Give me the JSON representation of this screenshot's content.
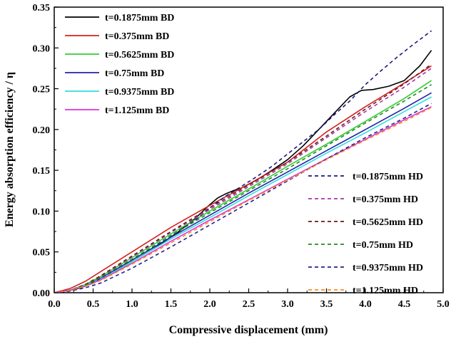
{
  "chart_data": {
    "type": "line",
    "title": "",
    "xlabel": "Compressive displacement (mm)",
    "ylabel": "Energy absorption efficiency / η",
    "xlim": [
      0,
      5
    ],
    "ylim": [
      0,
      0.35
    ],
    "xticks": [
      "0.0",
      "0.5",
      "1.0",
      "1.5",
      "2.0",
      "2.5",
      "3.0",
      "3.5",
      "4.0",
      "4.5",
      "5.0"
    ],
    "yticks": [
      "0.00",
      "0.05",
      "0.10",
      "0.15",
      "0.20",
      "0.25",
      "0.30",
      "0.35"
    ],
    "xtick_values": [
      0,
      0.5,
      1.0,
      1.5,
      2.0,
      2.5,
      3.0,
      3.5,
      4.0,
      4.5,
      5.0
    ],
    "ytick_values": [
      0,
      0.05,
      0.1,
      0.15,
      0.2,
      0.25,
      0.3,
      0.35
    ],
    "grid": false,
    "legends": [
      {
        "placement": "top-left",
        "entries": [
          "t=0.1875mm BD",
          "t=0.375mm BD",
          "t=0.5625mm BD",
          "t=0.75mm BD",
          "t=0.9375mm BD",
          "t=1.125mm BD"
        ]
      },
      {
        "placement": "bottom-right",
        "entries": [
          "t=0.1875mm HD",
          "t=0.375mm HD",
          "t=0.5625mm HD",
          "t=0.75mm HD",
          "t=0.9375mm HD",
          "t=1.125mm HD"
        ]
      }
    ],
    "series": [
      {
        "name": "t=0.1875mm BD",
        "color": "#000000",
        "style": "solid",
        "x": [
          0,
          0.1,
          0.2,
          0.3,
          0.4,
          0.5,
          0.7,
          1.0,
          1.3,
          1.6,
          1.8,
          2.0,
          2.1,
          2.2,
          2.3,
          2.4,
          2.6,
          2.8,
          3.0,
          3.2,
          3.4,
          3.6,
          3.8,
          3.95,
          4.1,
          4.3,
          4.5,
          4.7,
          4.85
        ],
        "y": [
          0,
          0.002,
          0.003,
          0.005,
          0.008,
          0.012,
          0.022,
          0.038,
          0.055,
          0.075,
          0.09,
          0.108,
          0.116,
          0.121,
          0.125,
          0.128,
          0.138,
          0.15,
          0.163,
          0.18,
          0.2,
          0.22,
          0.24,
          0.248,
          0.249,
          0.253,
          0.26,
          0.278,
          0.297
        ]
      },
      {
        "name": "t=0.375mm BD",
        "color": "#d42020",
        "style": "solid",
        "x": [
          0,
          0.2,
          0.4,
          0.6,
          1.0,
          1.5,
          2.0,
          2.5,
          3.0,
          3.5,
          4.0,
          4.5,
          4.85
        ],
        "y": [
          0,
          0.005,
          0.014,
          0.026,
          0.05,
          0.08,
          0.107,
          0.133,
          0.16,
          0.197,
          0.228,
          0.257,
          0.278
        ]
      },
      {
        "name": "t=0.5625mm BD",
        "color": "#33cc33",
        "style": "solid",
        "x": [
          0,
          0.2,
          0.4,
          0.6,
          1.0,
          1.5,
          2.0,
          2.5,
          3.0,
          3.5,
          4.0,
          4.5,
          4.85
        ],
        "y": [
          0,
          0.003,
          0.01,
          0.02,
          0.043,
          0.072,
          0.1,
          0.127,
          0.155,
          0.182,
          0.21,
          0.238,
          0.26
        ]
      },
      {
        "name": "t=0.75mm BD",
        "color": "#2222aa",
        "style": "solid",
        "x": [
          0,
          0.2,
          0.4,
          0.6,
          1.0,
          1.5,
          2.0,
          2.5,
          3.0,
          3.5,
          4.0,
          4.5,
          4.85
        ],
        "y": [
          0,
          0.003,
          0.009,
          0.018,
          0.04,
          0.068,
          0.095,
          0.122,
          0.148,
          0.174,
          0.2,
          0.226,
          0.245
        ]
      },
      {
        "name": "t=0.9375mm BD",
        "color": "#33dddd",
        "style": "solid",
        "x": [
          0,
          0.2,
          0.4,
          0.6,
          1.0,
          1.5,
          2.0,
          2.5,
          3.0,
          3.5,
          4.0,
          4.5,
          4.85
        ],
        "y": [
          0,
          0.003,
          0.009,
          0.017,
          0.038,
          0.066,
          0.092,
          0.119,
          0.145,
          0.171,
          0.196,
          0.222,
          0.24
        ]
      },
      {
        "name": "t=1.125mm BD",
        "color": "#dd33dd",
        "style": "solid",
        "x": [
          0,
          0.2,
          0.4,
          0.6,
          1.0,
          1.5,
          2.0,
          2.5,
          3.0,
          3.5,
          4.0,
          4.5,
          4.85
        ],
        "y": [
          0,
          0.003,
          0.008,
          0.016,
          0.036,
          0.063,
          0.089,
          0.114,
          0.139,
          0.164,
          0.188,
          0.212,
          0.228
        ]
      },
      {
        "name": "t=0.1875mm HD",
        "color": "#1a1a7a",
        "style": "dashed",
        "x": [
          0,
          0.2,
          0.4,
          0.6,
          1.0,
          1.5,
          1.8,
          2.0,
          2.2,
          2.4,
          2.6,
          2.8,
          3.0,
          3.2,
          3.4,
          3.6,
          3.8,
          4.0,
          4.2,
          4.4,
          4.6,
          4.85
        ],
        "y": [
          0,
          0.002,
          0.008,
          0.018,
          0.04,
          0.07,
          0.088,
          0.104,
          0.118,
          0.13,
          0.142,
          0.155,
          0.17,
          0.185,
          0.2,
          0.218,
          0.235,
          0.255,
          0.272,
          0.288,
          0.303,
          0.321
        ]
      },
      {
        "name": "t=0.375mm HD",
        "color": "#aa33aa",
        "style": "dashed",
        "x": [
          0,
          0.2,
          0.4,
          0.6,
          1.0,
          1.5,
          2.0,
          2.5,
          3.0,
          3.5,
          4.0,
          4.5,
          4.85
        ],
        "y": [
          0,
          0.003,
          0.01,
          0.02,
          0.044,
          0.074,
          0.102,
          0.13,
          0.158,
          0.19,
          0.222,
          0.252,
          0.275
        ]
      },
      {
        "name": "t=0.5625mm HD",
        "color": "#6b1a1a",
        "style": "dashed",
        "x": [
          0,
          0.2,
          0.4,
          0.6,
          1.0,
          1.5,
          2.0,
          2.5,
          3.0,
          3.5,
          4.0,
          4.5,
          4.85
        ],
        "y": [
          0,
          0.003,
          0.01,
          0.021,
          0.045,
          0.075,
          0.104,
          0.132,
          0.16,
          0.192,
          0.225,
          0.256,
          0.28
        ]
      },
      {
        "name": "t=0.75mm HD",
        "color": "#228b22",
        "style": "dashed",
        "x": [
          0,
          0.2,
          0.4,
          0.6,
          1.0,
          1.5,
          2.0,
          2.5,
          3.0,
          3.5,
          4.0,
          4.5,
          4.85
        ],
        "y": [
          0,
          0.003,
          0.009,
          0.019,
          0.041,
          0.07,
          0.098,
          0.125,
          0.152,
          0.18,
          0.208,
          0.235,
          0.255
        ]
      },
      {
        "name": "t=0.9375mm HD",
        "color": "#222288",
        "style": "dashed",
        "x": [
          0,
          0.2,
          0.4,
          0.6,
          1.0,
          1.5,
          2.0,
          2.5,
          3.0,
          3.5,
          4.0,
          4.5,
          4.85
        ],
        "y": [
          0,
          0.002,
          0.006,
          0.012,
          0.03,
          0.056,
          0.083,
          0.11,
          0.137,
          0.164,
          0.19,
          0.214,
          0.232
        ]
      },
      {
        "name": "t=1.125mm HD",
        "color": "#ff8c1a",
        "style": "dashed",
        "x": [
          0,
          0.2,
          0.4,
          0.6,
          1.0,
          1.5,
          2.0,
          2.5,
          3.0,
          3.5,
          4.0,
          4.5,
          4.85
        ],
        "y": [
          0,
          0.003,
          0.008,
          0.015,
          0.035,
          0.061,
          0.087,
          0.113,
          0.138,
          0.163,
          0.187,
          0.21,
          0.227
        ]
      }
    ]
  }
}
